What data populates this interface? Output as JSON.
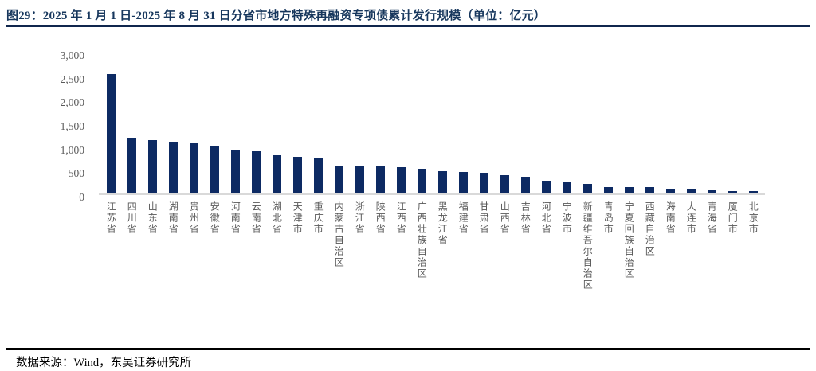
{
  "header": {
    "title": "图29：2025 年 1 月 1 日-2025 年 8 月 31 日分省市地方特殊再融资专项债累计发行规模（单位：亿元）"
  },
  "footer": {
    "source": "数据来源：Wind，东吴证券研究所"
  },
  "colors": {
    "bar": "#0d2a63",
    "title": "#17375d",
    "title_rule": "#10264d",
    "axis_text": "#595959",
    "baseline": "#d9d9d9",
    "footer_rule": "#000000"
  },
  "chart_data": {
    "type": "bar",
    "title": "2025年1月1日-2025年8月31日分省市地方特殊再融资专项债累计发行规模",
    "unit": "亿元",
    "ylabel": "",
    "xlabel": "",
    "ylim": [
      0,
      3000
    ],
    "yticks": [
      0,
      500,
      1000,
      1500,
      2000,
      2500,
      3000
    ],
    "ytick_labels": [
      "0",
      "500",
      "1,000",
      "1,500",
      "2,000",
      "2,500",
      "3,000"
    ],
    "grid": false,
    "legend_position": "none",
    "categories": [
      "江苏省",
      "四川省",
      "山东省",
      "湖南省",
      "贵州省",
      "安徽省",
      "河南省",
      "云南省",
      "湖北省",
      "天津市",
      "重庆市",
      "内蒙古自治区",
      "浙江省",
      "陕西省",
      "江西省",
      "广西壮族自治区",
      "黑龙江省",
      "福建省",
      "甘肃省",
      "山西省",
      "吉林省",
      "河北省",
      "宁波市",
      "新疆维吾尔自治区",
      "青岛市",
      "宁夏回族自治区",
      "西藏自治区",
      "海南省",
      "大连市",
      "青海省",
      "厦门市",
      "北京市"
    ],
    "values": [
      2510,
      1155,
      1110,
      1080,
      1060,
      985,
      895,
      885,
      790,
      760,
      742,
      565,
      562,
      558,
      545,
      500,
      460,
      440,
      420,
      365,
      345,
      248,
      222,
      188,
      122,
      118,
      115,
      76,
      70,
      45,
      30,
      28
    ]
  }
}
